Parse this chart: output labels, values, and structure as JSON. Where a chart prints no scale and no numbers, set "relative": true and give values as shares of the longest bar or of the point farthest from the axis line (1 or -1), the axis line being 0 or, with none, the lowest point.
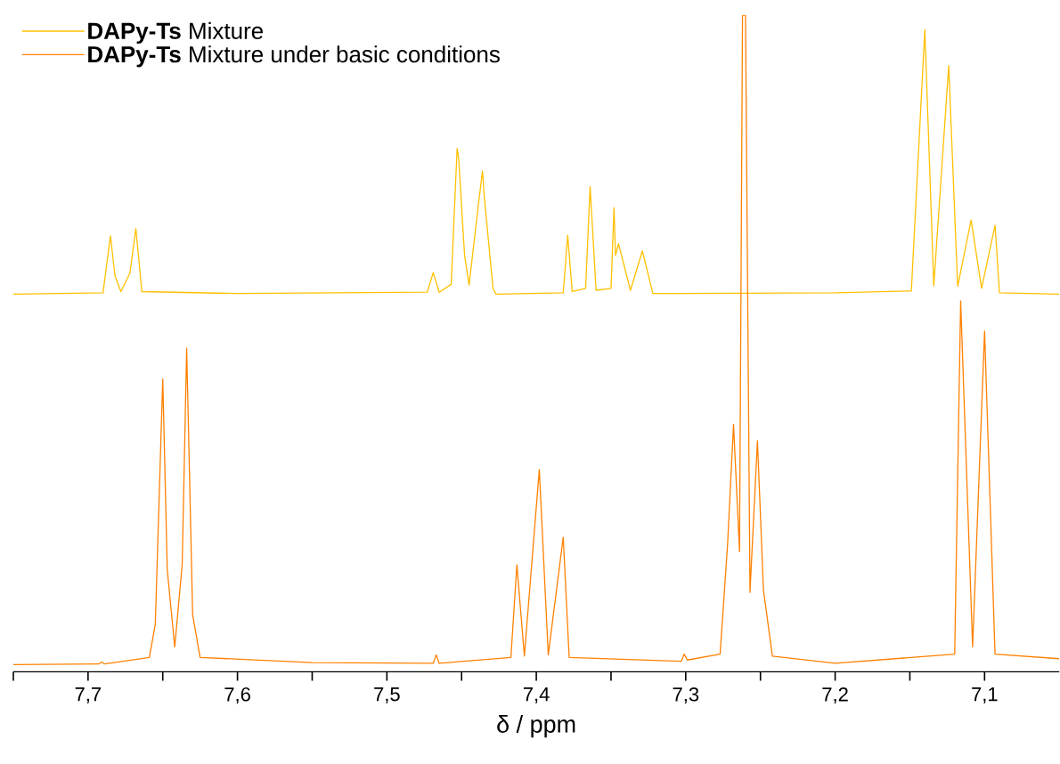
{
  "chart_data": {
    "type": "line",
    "xlabel": "δ / ppm",
    "relative": true,
    "tick_labels": "x",
    "legend": "top left",
    "marker": "none",
    "line_style": "solid",
    "xlim": [
      7.75,
      7.05
    ],
    "xticks": [
      {
        "value": 7.75,
        "label": null
      },
      {
        "value": 7.7,
        "label": "7,7"
      },
      {
        "value": 7.65,
        "label": null
      },
      {
        "value": 7.6,
        "label": "7,6"
      },
      {
        "value": 7.55,
        "label": null
      },
      {
        "value": 7.5,
        "label": "7,5"
      },
      {
        "value": 7.45,
        "label": null
      },
      {
        "value": 7.4,
        "label": "7,4"
      },
      {
        "value": 7.35,
        "label": null
      },
      {
        "value": 7.3,
        "label": "7,3"
      },
      {
        "value": 7.25,
        "label": null
      },
      {
        "value": 7.2,
        "label": "7,2"
      },
      {
        "value": 7.15,
        "label": null
      },
      {
        "value": 7.1,
        "label": "7,1"
      }
    ],
    "series": [
      {
        "name": "**DAPy-Ts** Mixture",
        "color": "#ffc000",
        "x": [
          7.75,
          7.69,
          7.685,
          7.682,
          7.678,
          7.672,
          7.668,
          7.664,
          7.6,
          7.473,
          7.469,
          7.465,
          7.457,
          7.453,
          7.452,
          7.448,
          7.445,
          7.439,
          7.436,
          7.435,
          7.429,
          7.427,
          7.382,
          7.379,
          7.376,
          7.367,
          7.364,
          7.36,
          7.35,
          7.348,
          7.347,
          7.345,
          7.337,
          7.329,
          7.322,
          7.2,
          7.149,
          7.14,
          7.134,
          7.124,
          7.118,
          7.109,
          7.102,
          7.093,
          7.09,
          7.05
        ],
        "values": [
          0.575,
          0.577,
          0.664,
          0.603,
          0.579,
          0.607,
          0.675,
          0.579,
          0.576,
          0.578,
          0.608,
          0.578,
          0.59,
          0.797,
          0.783,
          0.634,
          0.589,
          0.707,
          0.763,
          0.728,
          0.584,
          0.575,
          0.577,
          0.665,
          0.579,
          0.584,
          0.739,
          0.581,
          0.584,
          0.707,
          0.634,
          0.652,
          0.581,
          0.641,
          0.576,
          0.577,
          0.58,
          0.978,
          0.588,
          0.923,
          0.587,
          0.688,
          0.584,
          0.68,
          0.577,
          0.575
        ]
      },
      {
        "name": "**DAPy-Ts** Mixture under basic conditions",
        "color": "#ff8000",
        "x": [
          7.75,
          7.693,
          7.691,
          7.689,
          7.659,
          7.655,
          7.65,
          7.647,
          7.642,
          7.637,
          7.634,
          7.63,
          7.625,
          7.55,
          7.469,
          7.467,
          7.465,
          7.417,
          7.413,
          7.408,
          7.398,
          7.392,
          7.382,
          7.378,
          7.303,
          7.301,
          7.299,
          7.277,
          7.272,
          7.268,
          7.264,
          7.262,
          7.26,
          7.257,
          7.252,
          7.248,
          7.242,
          7.2,
          7.12,
          7.116,
          7.108,
          7.1,
          7.093,
          7.05
        ],
        "values": [
          0.011,
          0.012,
          0.015,
          0.012,
          0.022,
          0.072,
          0.446,
          0.156,
          0.038,
          0.163,
          0.493,
          0.087,
          0.022,
          0.014,
          0.013,
          0.026,
          0.013,
          0.022,
          0.163,
          0.024,
          0.308,
          0.026,
          0.205,
          0.022,
          0.016,
          0.027,
          0.018,
          0.027,
          0.194,
          0.377,
          0.183,
          1.0,
          1.0,
          0.121,
          0.352,
          0.125,
          0.024,
          0.013,
          0.027,
          0.565,
          0.038,
          0.519,
          0.027,
          0.02
        ]
      }
    ]
  }
}
